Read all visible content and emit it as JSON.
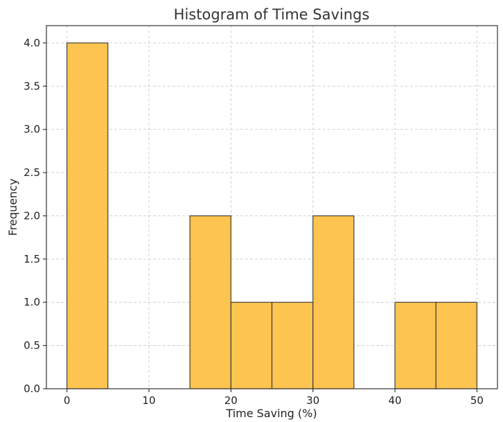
{
  "chart_data": {
    "type": "bar",
    "title": "Histogram of Time Savings",
    "xlabel": "Time Saving (%)",
    "ylabel": "Frequency",
    "bins": [
      {
        "start": 0,
        "end": 5,
        "count": 4
      },
      {
        "start": 5,
        "end": 10,
        "count": 0
      },
      {
        "start": 10,
        "end": 15,
        "count": 0
      },
      {
        "start": 15,
        "end": 20,
        "count": 2
      },
      {
        "start": 20,
        "end": 25,
        "count": 1
      },
      {
        "start": 25,
        "end": 30,
        "count": 1
      },
      {
        "start": 30,
        "end": 35,
        "count": 2
      },
      {
        "start": 35,
        "end": 40,
        "count": 0
      },
      {
        "start": 40,
        "end": 45,
        "count": 1
      },
      {
        "start": 45,
        "end": 50,
        "count": 1
      }
    ],
    "xlim": [
      -2.5,
      52.5
    ],
    "ylim": [
      0,
      4.2
    ],
    "xticks": [
      0,
      10,
      20,
      30,
      40,
      50
    ],
    "yticks": [
      "0.0",
      "0.5",
      "1.0",
      "1.5",
      "2.0",
      "2.5",
      "3.0",
      "3.5",
      "4.0"
    ],
    "grid": true,
    "bar_color": "#fdc44f",
    "edge_color": "#333333"
  }
}
